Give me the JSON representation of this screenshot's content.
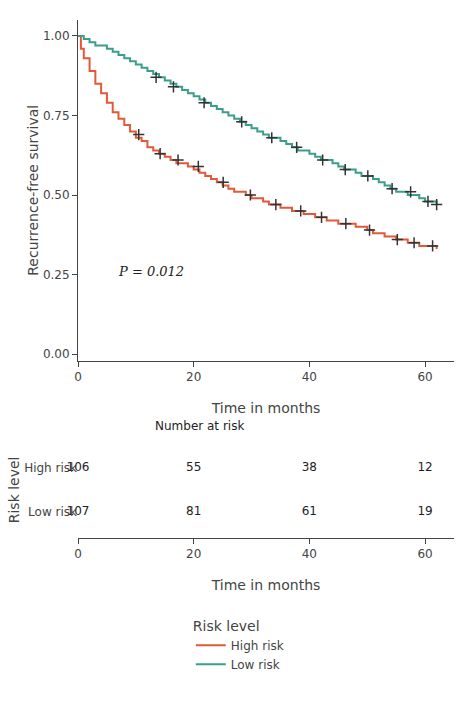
{
  "chart_data": [
    {
      "type": "line",
      "line_style": "step",
      "xlabel": "Time in months",
      "ylabel": "Recurrence-free survival",
      "xlim": [
        0,
        65
      ],
      "ylim": [
        -0.02,
        1.05
      ],
      "xticks": [
        0,
        20,
        40,
        60
      ],
      "yticks": [
        {
          "value": 0.0,
          "label": "0.00"
        },
        {
          "value": 0.25,
          "label": "0.25"
        },
        {
          "value": 0.5,
          "label": "0.50"
        },
        {
          "value": 0.75,
          "label": "0.75"
        },
        {
          "value": 1.0,
          "label": "1.00"
        }
      ],
      "grid": false,
      "legend": "bottom",
      "legend_title": "Risk level",
      "annotations": [
        {
          "text": "P = 0.012"
        }
      ],
      "series": [
        {
          "name": "High risk",
          "color": "#E05A3A",
          "x": [
            0,
            0.5,
            1,
            2,
            3,
            4,
            5,
            6,
            7,
            8,
            9,
            10,
            11,
            12,
            13,
            14,
            15,
            16,
            17,
            18,
            19,
            20,
            21,
            22,
            23,
            24,
            25,
            26,
            27,
            28,
            29,
            30,
            31,
            32,
            33,
            34,
            35,
            36,
            37,
            38,
            39,
            40,
            41,
            42,
            43,
            44,
            45,
            46,
            47,
            48,
            49,
            50,
            51,
            52,
            53,
            54,
            55,
            56,
            57,
            58,
            59,
            60,
            61,
            62
          ],
          "values": [
            1.0,
            0.96,
            0.93,
            0.89,
            0.85,
            0.82,
            0.79,
            0.76,
            0.74,
            0.72,
            0.7,
            0.68,
            0.67,
            0.65,
            0.64,
            0.63,
            0.62,
            0.61,
            0.6,
            0.6,
            0.59,
            0.58,
            0.57,
            0.56,
            0.55,
            0.54,
            0.53,
            0.52,
            0.51,
            0.51,
            0.5,
            0.49,
            0.49,
            0.48,
            0.47,
            0.47,
            0.46,
            0.46,
            0.45,
            0.45,
            0.44,
            0.44,
            0.43,
            0.43,
            0.42,
            0.42,
            0.41,
            0.41,
            0.41,
            0.4,
            0.4,
            0.39,
            0.38,
            0.38,
            0.37,
            0.37,
            0.36,
            0.36,
            0.35,
            0.35,
            0.34,
            0.34,
            0.34,
            0.33
          ]
        },
        {
          "name": "Low risk",
          "color": "#3A9E8A",
          "x": [
            0,
            1,
            2,
            3,
            4,
            5,
            6,
            7,
            8,
            9,
            10,
            11,
            12,
            13,
            14,
            15,
            16,
            17,
            18,
            19,
            20,
            21,
            22,
            23,
            24,
            25,
            26,
            27,
            28,
            29,
            30,
            31,
            32,
            33,
            34,
            35,
            36,
            37,
            38,
            39,
            40,
            41,
            42,
            43,
            44,
            45,
            46,
            47,
            48,
            49,
            50,
            51,
            52,
            53,
            54,
            55,
            56,
            57,
            58,
            59,
            60,
            61,
            62
          ],
          "values": [
            1.0,
            0.99,
            0.98,
            0.97,
            0.97,
            0.96,
            0.95,
            0.94,
            0.93,
            0.92,
            0.91,
            0.9,
            0.89,
            0.88,
            0.87,
            0.86,
            0.85,
            0.84,
            0.83,
            0.82,
            0.81,
            0.8,
            0.79,
            0.78,
            0.77,
            0.76,
            0.75,
            0.74,
            0.73,
            0.72,
            0.71,
            0.7,
            0.69,
            0.68,
            0.68,
            0.67,
            0.66,
            0.65,
            0.64,
            0.64,
            0.63,
            0.62,
            0.61,
            0.61,
            0.6,
            0.59,
            0.58,
            0.58,
            0.57,
            0.56,
            0.56,
            0.55,
            0.54,
            0.53,
            0.52,
            0.51,
            0.51,
            0.5,
            0.5,
            0.49,
            0.48,
            0.48,
            0.47
          ]
        },
        {
          "type": "scatter",
          "marker": "plus",
          "color": "#333333",
          "x": [
            10.5,
            14.2,
            17.3,
            20.8,
            25.1,
            29.8,
            34.2,
            38.5,
            42.1,
            46.3,
            50.4,
            55.2,
            58.1,
            61.3
          ],
          "values": [
            0.69,
            0.63,
            0.61,
            0.59,
            0.54,
            0.5,
            0.47,
            0.45,
            0.43,
            0.41,
            0.39,
            0.36,
            0.35,
            0.34
          ]
        },
        {
          "type": "scatter",
          "marker": "plus",
          "color": "#333333",
          "x": [
            13.5,
            16.5,
            21.8,
            28.3,
            33.5,
            37.8,
            42.3,
            46.2,
            50.1,
            54.3,
            57.5,
            60.5,
            62.0
          ],
          "values": [
            0.87,
            0.84,
            0.79,
            0.73,
            0.68,
            0.65,
            0.61,
            0.58,
            0.56,
            0.52,
            0.51,
            0.48,
            0.47
          ]
        }
      ]
    },
    {
      "type": "table",
      "title": "Number at risk",
      "xlabel": "Time in months",
      "ylabel": "Risk level",
      "xlim": [
        0,
        65
      ],
      "xticks": [
        0,
        20,
        40,
        60
      ],
      "x": [
        0,
        20,
        40,
        60
      ],
      "series": [
        {
          "name": "High risk",
          "values": [
            106,
            55,
            38,
            12
          ]
        },
        {
          "name": "Low risk",
          "values": [
            107,
            81,
            61,
            19
          ]
        }
      ]
    }
  ]
}
